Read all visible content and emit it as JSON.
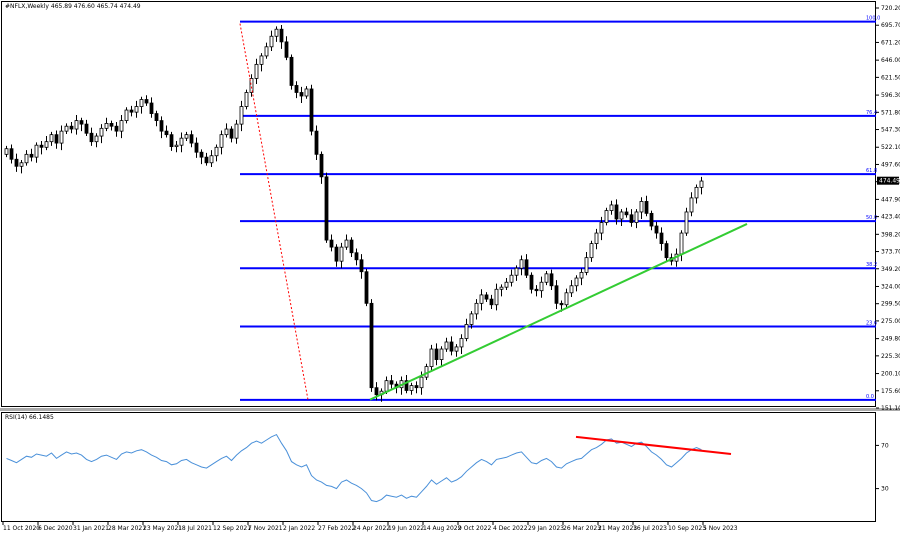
{
  "header": {
    "symbol_info": "#NFLX,Weekly  465.89 476.60 465.74 474.49",
    "rsi_label": "RSI(14) 66.1485"
  },
  "colors": {
    "candle": "#000000",
    "fib_lines": "#0000ff",
    "fib_labels": "#0000ff",
    "trendline": "#33cc33",
    "divergence_line": "#ff0000",
    "rsi_line": "#4a90d9",
    "projection_dotted": "#ff0000",
    "price_tag_bg": "#000000",
    "price_tag_text": "#ffffff",
    "grid": "none"
  },
  "chart_data": [
    {
      "type": "candlestick",
      "title": "#NFLX,Weekly  465.89 476.60 465.74 474.49",
      "y_axis": {
        "ticks": [
          "720.20",
          "695.70",
          "671.20",
          "646.00",
          "621.50",
          "596.30",
          "571.80",
          "547.30",
          "522.10",
          "497.60",
          "473.10",
          "447.90",
          "423.40",
          "398.20",
          "373.70",
          "349.20",
          "324.00",
          "299.50",
          "275.00",
          "249.80",
          "225.30",
          "200.10",
          "175.60",
          "151.10"
        ],
        "range": [
          151.1,
          720.2
        ]
      },
      "x_axis": {
        "ticks": [
          "11 Oct 2020",
          "6 Dec 2020",
          "31 Jan 2021",
          "28 Mar 2021",
          "23 May 2021",
          "18 Jul 2021",
          "12 Sep 2021",
          "7 Nov 2021",
          "2 Jan 2022",
          "27 Feb 2022",
          "24 Apr 2022",
          "19 Jun 2022",
          "14 Aug 2022",
          "9 Oct 2022",
          "4 Dec 2022",
          "29 Jan 2023",
          "26 Mar 2023",
          "21 May 2023",
          "16 Jul 2023",
          "10 Sep 2023",
          "5 Nov 2023"
        ]
      },
      "current_price": "474.49",
      "fib_levels": [
        {
          "label": "100.0",
          "value": 700.9
        },
        {
          "label": "76.4",
          "value": 566.8
        },
        {
          "label": "61.8",
          "value": 483.9
        },
        {
          "label": "50.0",
          "value": 416.9
        },
        {
          "label": "38.2",
          "value": 350.0
        },
        {
          "label": "23.6",
          "value": 267.1
        },
        {
          "label": "0.0",
          "value": 162.7
        }
      ],
      "closes": [
        520,
        505,
        495,
        500,
        512,
        508,
        525,
        522,
        530,
        540,
        528,
        545,
        552,
        548,
        560,
        555,
        542,
        530,
        538,
        549,
        556,
        552,
        545,
        560,
        575,
        572,
        580,
        590,
        585,
        570,
        560,
        545,
        540,
        523,
        525,
        535,
        540,
        528,
        515,
        508,
        500,
        510,
        522,
        540,
        548,
        535,
        555,
        580,
        600,
        620,
        640,
        652,
        665,
        680,
        690,
        672,
        650,
        610,
        600,
        595,
        605,
        545,
        512,
        480,
        390,
        380,
        360,
        380,
        390,
        372,
        362,
        345,
        300,
        180,
        170,
        175,
        190,
        185,
        180,
        190,
        176,
        183,
        180,
        195,
        210,
        235,
        220,
        235,
        245,
        232,
        238,
        250,
        270,
        285,
        300,
        312,
        306,
        298,
        320,
        323,
        330,
        340,
        350,
        362,
        340,
        320,
        318,
        330,
        342,
        325,
        300,
        298,
        315,
        325,
        336,
        344,
        365,
        385,
        400,
        415,
        432,
        440,
        420,
        430,
        426,
        415,
        430,
        445,
        428,
        410,
        400,
        385,
        365,
        360,
        370,
        400,
        430,
        450,
        465,
        474
      ]
    },
    {
      "type": "line",
      "title": "RSI(14) 66.1485",
      "y_axis": {
        "ticks": [
          "70",
          "30"
        ],
        "range": [
          0,
          100
        ]
      },
      "values": [
        58,
        56,
        54,
        57,
        60,
        59,
        62,
        61,
        60,
        63,
        58,
        61,
        64,
        62,
        63,
        61,
        57,
        55,
        57,
        60,
        61,
        59,
        57,
        62,
        64,
        63,
        65,
        66,
        64,
        61,
        59,
        56,
        55,
        52,
        53,
        56,
        57,
        54,
        52,
        50,
        49,
        52,
        55,
        58,
        60,
        56,
        61,
        65,
        68,
        72,
        74,
        72,
        75,
        78,
        80,
        72,
        65,
        55,
        52,
        50,
        52,
        42,
        38,
        36,
        33,
        32,
        30,
        36,
        38,
        35,
        33,
        30,
        26,
        19,
        18,
        20,
        24,
        23,
        22,
        24,
        21,
        23,
        22,
        27,
        32,
        38,
        34,
        37,
        40,
        36,
        38,
        41,
        46,
        50,
        54,
        57,
        55,
        52,
        57,
        58,
        59,
        61,
        63,
        64,
        59,
        54,
        53,
        56,
        58,
        55,
        50,
        49,
        53,
        55,
        57,
        58,
        62,
        66,
        68,
        71,
        75,
        76,
        72,
        73,
        71,
        69,
        72,
        73,
        69,
        64,
        61,
        57,
        52,
        50,
        54,
        58,
        63,
        66,
        68,
        66
      ],
      "divergence": {
        "start_value": 76,
        "end_value": 62
      }
    }
  ]
}
